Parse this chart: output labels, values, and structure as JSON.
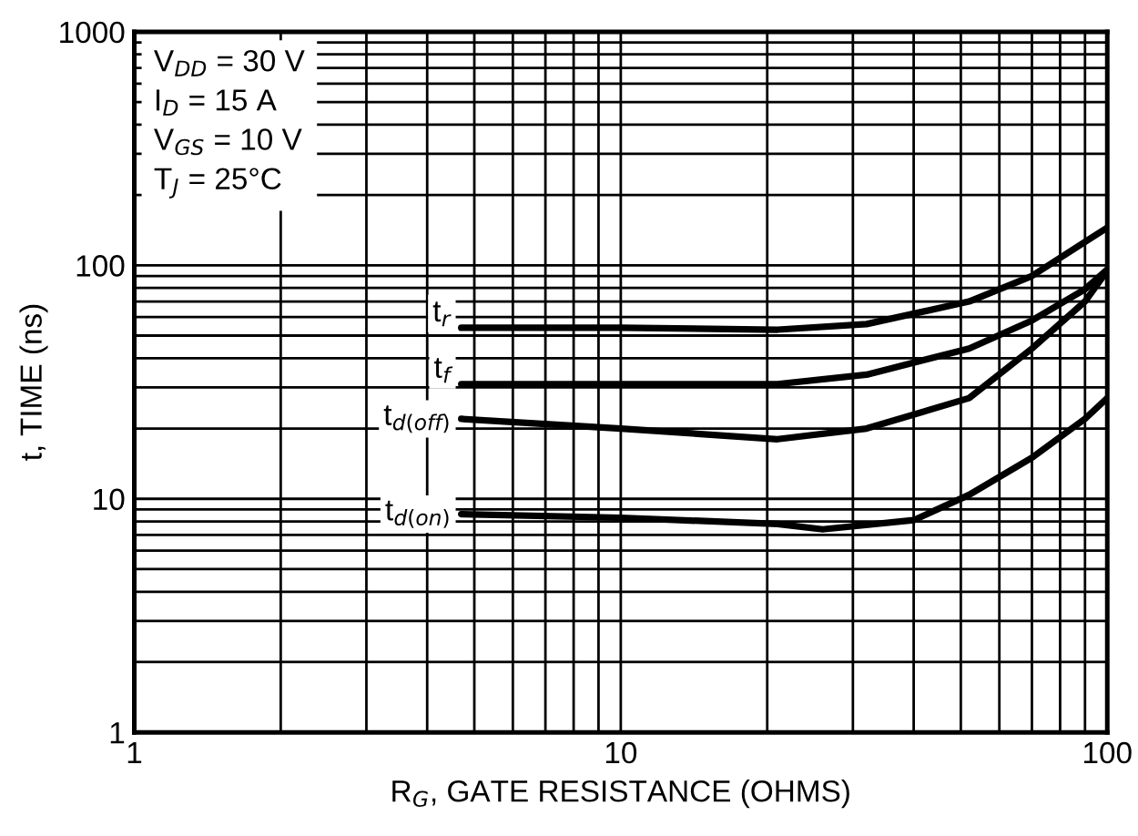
{
  "chart_data": {
    "type": "line",
    "xlabel": "R$_{G}$, GATE RESISTANCE (OHMS)",
    "ylabel": "t, TIME (ns)",
    "log": "xy",
    "xlim": [
      1,
      100
    ],
    "ylim": [
      1,
      1000
    ],
    "xticks": [
      1,
      10,
      100
    ],
    "yticks": [
      1,
      10,
      100,
      1000
    ],
    "grid": true,
    "legend": false,
    "marker": "none",
    "line_style": "solid",
    "annotations": [
      "V$_{DD}$ = 30 V",
      "I$_{D}$ = 15 A",
      "V$_{GS}$ = 10 V",
      "T$_{J}$ = 25°C"
    ],
    "series": [
      {
        "name": "t$_{r}$",
        "color": "#000000",
        "x": [
          4.7,
          10,
          21,
          32,
          52,
          70,
          100
        ],
        "values": [
          54,
          54,
          53,
          56,
          70,
          90,
          145
        ]
      },
      {
        "name": "t$_{f}$",
        "color": "#000000",
        "x": [
          4.7,
          10,
          21,
          32,
          52,
          70,
          90,
          100
        ],
        "values": [
          31,
          31,
          31,
          34,
          44,
          58,
          79,
          96
        ]
      },
      {
        "name": "t$_{d(off)}$",
        "color": "#000000",
        "x": [
          4.7,
          10,
          21,
          32,
          52,
          70,
          90,
          100
        ],
        "values": [
          22,
          20,
          18,
          20,
          27,
          44,
          70,
          95
        ]
      },
      {
        "name": "t$_{d(on)}$",
        "color": "#000000",
        "x": [
          4.7,
          10,
          21,
          26,
          40,
          52,
          70,
          90,
          100
        ],
        "values": [
          8.6,
          8.3,
          7.8,
          7.4,
          8.1,
          10.4,
          15,
          22,
          27
        ]
      }
    ]
  }
}
